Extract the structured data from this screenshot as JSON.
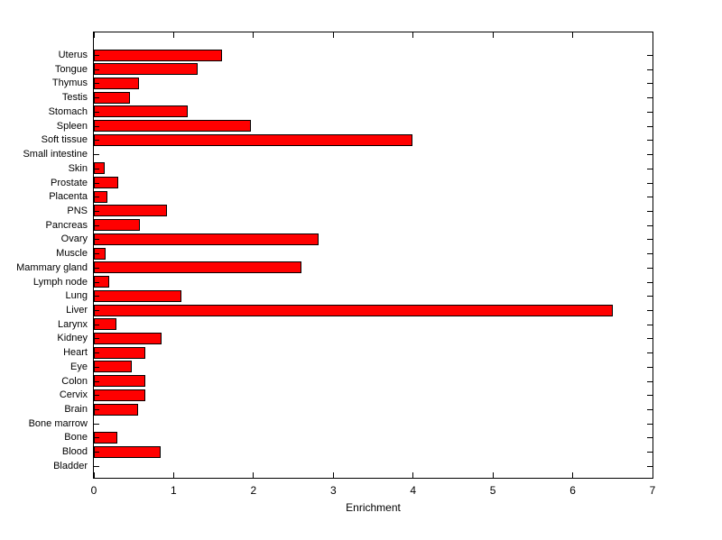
{
  "figure": {
    "background_color": "#ffffff",
    "axis_color": "#000000"
  },
  "chart_data": {
    "type": "bar",
    "orientation": "horizontal",
    "title": "",
    "xlabel": "Enrichment",
    "ylabel": "",
    "xlim": [
      0,
      7
    ],
    "xticks": [
      0,
      1,
      2,
      3,
      4,
      5,
      6,
      7
    ],
    "grid": false,
    "legend": "none",
    "bar_color": "#ff0000",
    "bar_edge_color": "#000000",
    "categories_top_to_bottom": [
      "Uterus",
      "Tongue",
      "Thymus",
      "Testis",
      "Stomach",
      "Spleen",
      "Soft tissue",
      "Small intestine",
      "Skin",
      "Prostate",
      "Placenta",
      "PNS",
      "Pancreas",
      "Ovary",
      "Muscle",
      "Mammary gland",
      "Lymph node",
      "Lung",
      "Liver",
      "Larynx",
      "Kidney",
      "Heart",
      "Eye",
      "Colon",
      "Cervix",
      "Brain",
      "Bone marrow",
      "Bone",
      "Blood",
      "Bladder"
    ],
    "values": [
      1.6,
      1.3,
      0.56,
      0.45,
      1.17,
      1.97,
      3.99,
      0,
      0.13,
      0.3,
      0.17,
      0.91,
      0.58,
      2.81,
      0.15,
      2.6,
      0.19,
      1.1,
      6.5,
      0.28,
      0.85,
      0.64,
      0.48,
      0.64,
      0.64,
      0.55,
      0,
      0.29,
      0.84,
      0
    ]
  }
}
